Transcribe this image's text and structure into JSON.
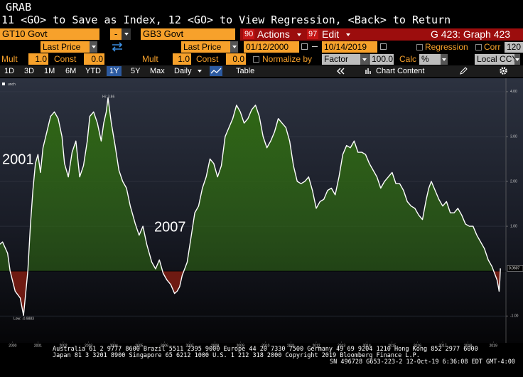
{
  "header": {
    "title": "GRAB",
    "instructions": "11 <GO> to Save as Index, 12 <GO> to View Regression, <Back> to Return"
  },
  "toolbar": {
    "security1": "GT10 Govt",
    "operator": "-",
    "security2": "GB3 Govt",
    "actions_key": "90",
    "actions": "Actions",
    "edit_key": "97",
    "edit": "Edit",
    "graph": "G 423: Graph 423"
  },
  "fields": {
    "field1": "Last Price",
    "field2": "Last Price",
    "start_date": "01/12/2000",
    "end_date": "10/14/2019",
    "regression": "Regression",
    "corr": "Corr",
    "corr_value": "120"
  },
  "params": {
    "mult1": {
      "label": "Mult",
      "value": "1.0"
    },
    "const1": {
      "label": "Const",
      "value": "0.0"
    },
    "mult2": {
      "label": "Mult",
      "value": "1.0"
    },
    "const2": {
      "label": "Const",
      "value": "0.0"
    },
    "normalize": "Normalize by",
    "factor": "Factor",
    "factor_value": "100.0",
    "calc": "Calc",
    "calc_value": "%",
    "currency": "Local CCY"
  },
  "tabs": {
    "periods": [
      "1D",
      "3D",
      "1M",
      "6M",
      "YTD",
      "1Y",
      "5Y",
      "Max"
    ],
    "frequency": "Daily",
    "table": "Table",
    "chart_content": "Chart Content"
  },
  "chart_data": {
    "type": "area",
    "legend": "unch",
    "annotations": [
      "2001",
      "2007",
      "Hi: 3.86",
      "Low: -0.9883"
    ],
    "xlim": [
      2000,
      2020
    ],
    "xticks": [
      {
        "value": 2000.5,
        "label": "2000"
      },
      {
        "value": 2001.5,
        "label": "2001"
      },
      {
        "value": 2002.5,
        "label": "2002"
      },
      {
        "value": 2003.5,
        "label": "2003"
      },
      {
        "value": 2004.5,
        "label": "2004"
      },
      {
        "value": 2005.5,
        "label": "2005"
      },
      {
        "value": 2006.5,
        "label": "2006"
      },
      {
        "value": 2007.5,
        "label": "2007"
      },
      {
        "value": 2008.5,
        "label": "2008"
      },
      {
        "value": 2009.5,
        "label": "2009"
      },
      {
        "value": 2010.5,
        "label": "2010"
      },
      {
        "value": 2011.5,
        "label": "2011"
      },
      {
        "value": 2012.5,
        "label": "2012"
      },
      {
        "value": 2013.5,
        "label": "2013"
      },
      {
        "value": 2014.5,
        "label": "2014"
      },
      {
        "value": 2015.5,
        "label": "2015"
      },
      {
        "value": 2016.5,
        "label": "2016"
      },
      {
        "value": 2017.5,
        "label": "2017"
      },
      {
        "value": 2018.5,
        "label": "2018"
      },
      {
        "value": 2019.5,
        "label": "2019"
      }
    ],
    "ylim": [
      -1.6,
      4.3
    ],
    "yticks": [
      {
        "value": -1,
        "label": "-1.00"
      },
      {
        "value": 1,
        "label": "1.00"
      },
      {
        "value": 2,
        "label": "2.00"
      },
      {
        "value": 3,
        "label": "3.00"
      },
      {
        "value": 4,
        "label": "4.00"
      }
    ],
    "grid": true,
    "series": [
      {
        "name": "unch",
        "color": "#ffffff",
        "fill_above": "#2f6a12",
        "fill_below": "#6e1a12",
        "x": [
          2000.0,
          2000.1,
          2000.3,
          2000.4,
          2000.6,
          2000.8,
          2000.9,
          2000.93,
          2001.1,
          2001.2,
          2001.3,
          2001.4,
          2001.5,
          2001.6,
          2001.7,
          2001.85,
          2002.0,
          2002.15,
          2002.3,
          2002.45,
          2002.55,
          2002.7,
          2002.85,
          2003.0,
          2003.15,
          2003.3,
          2003.45,
          2003.55,
          2003.7,
          2003.85,
          2004.0,
          2004.1,
          2004.2,
          2004.27,
          2004.4,
          2004.55,
          2004.7,
          2004.85,
          2005.0,
          2005.15,
          2005.35,
          2005.5,
          2005.65,
          2005.8,
          2006.0,
          2006.15,
          2006.3,
          2006.45,
          2006.6,
          2006.75,
          2006.9,
          2007.0,
          2007.1,
          2007.2,
          2007.3,
          2007.4,
          2007.55,
          2007.7,
          2007.85,
          2008.0,
          2008.15,
          2008.3,
          2008.45,
          2008.6,
          2008.75,
          2008.9,
          2009.05,
          2009.2,
          2009.35,
          2009.5,
          2009.65,
          2009.8,
          2009.95,
          2010.1,
          2010.25,
          2010.4,
          2010.55,
          2010.7,
          2010.85,
          2011.0,
          2011.15,
          2011.3,
          2011.45,
          2011.6,
          2011.75,
          2011.9,
          2012.05,
          2012.2,
          2012.35,
          2012.5,
          2012.65,
          2012.8,
          2012.95,
          2013.1,
          2013.25,
          2013.4,
          2013.55,
          2013.7,
          2013.85,
          2014.0,
          2014.15,
          2014.3,
          2014.45,
          2014.6,
          2014.75,
          2014.9,
          2015.05,
          2015.2,
          2015.35,
          2015.5,
          2015.65,
          2015.8,
          2015.95,
          2016.1,
          2016.25,
          2016.4,
          2016.55,
          2016.7,
          2016.85,
          2016.95,
          2017.05,
          2017.2,
          2017.35,
          2017.5,
          2017.65,
          2017.8,
          2017.95,
          2018.1,
          2018.25,
          2018.4,
          2018.55,
          2018.7,
          2018.85,
          2019.0,
          2019.15,
          2019.3,
          2019.45,
          2019.55,
          2019.65,
          2019.7,
          2019.73,
          2019.76,
          2019.78
        ],
        "values": [
          0.6,
          0.65,
          0.4,
          0,
          -0.45,
          -0.6,
          -0.9,
          -0.9883,
          0,
          1.0,
          1.8,
          2.4,
          2.6,
          2.2,
          2.75,
          3.1,
          3.45,
          3.55,
          3.4,
          3.0,
          2.4,
          2.1,
          2.65,
          2.9,
          2.1,
          2.35,
          2.9,
          3.45,
          3.55,
          3.3,
          2.9,
          3.3,
          3.55,
          3.86,
          3.3,
          2.8,
          2.25,
          2.0,
          1.85,
          1.45,
          1.05,
          0.8,
          1.0,
          0.6,
          0.2,
          0.05,
          0.25,
          -0.05,
          -0.2,
          -0.3,
          -0.5,
          -0.45,
          -0.35,
          -0.1,
          0.05,
          0.2,
          0.75,
          1.3,
          1.45,
          1.85,
          2.1,
          2.5,
          2.4,
          2.1,
          2.35,
          3.0,
          3.2,
          3.4,
          3.7,
          3.55,
          3.3,
          3.4,
          3.6,
          3.7,
          3.45,
          3.0,
          2.75,
          2.9,
          3.1,
          3.4,
          3.3,
          3.2,
          2.9,
          2.35,
          2.0,
          1.95,
          2.0,
          2.1,
          1.8,
          1.4,
          1.55,
          1.6,
          1.8,
          1.85,
          1.7,
          2.1,
          2.6,
          2.8,
          2.75,
          2.9,
          2.65,
          2.65,
          2.6,
          2.4,
          2.25,
          2.1,
          1.85,
          2.0,
          2.1,
          2.2,
          1.95,
          1.95,
          1.8,
          1.55,
          1.45,
          1.4,
          1.25,
          1.15,
          1.6,
          1.85,
          2.0,
          1.8,
          1.6,
          1.45,
          1.55,
          1.3,
          1.3,
          1.4,
          1.25,
          1.05,
          1.0,
          1.0,
          0.8,
          0.65,
          0.5,
          0.25,
          0.1,
          -0.05,
          -0.2,
          -0.35,
          -0.45,
          -0.2,
          0.0607
        ]
      }
    ]
  },
  "footer": [
    "Australia 61 2 9777 8600 Brazil 5511 2395 9000 Europe 44 20 7330 7500 Germany 49 69 9204 1210 Hong Kong 852 2977 6000",
    "Japan 81 3 3201 8900       Singapore 65 6212 1000       U.S. 1 212 318 2000          Copyright 2019 Bloomberg Finance L.P.",
    "SN 496728 G653-223-2 12-Oct-19  6:36:08 EDT  GMT-4:00"
  ]
}
